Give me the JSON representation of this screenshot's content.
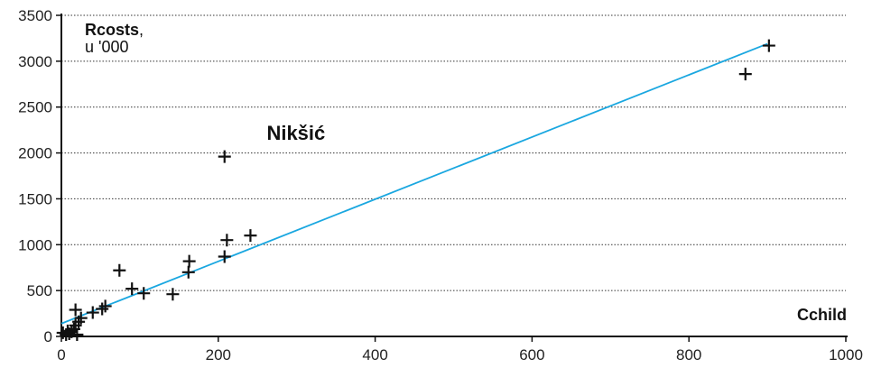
{
  "chart_data": {
    "type": "scatter",
    "title": "",
    "ylabel_bold": "Rcosts",
    "ylabel_comma": ",",
    "ylabel_unit": "u '000",
    "xlabel": "Cchild",
    "xlim": [
      0,
      1000
    ],
    "ylim": [
      0,
      3500
    ],
    "x_ticks": [
      0,
      200,
      400,
      600,
      800,
      1000
    ],
    "y_ticks": [
      0,
      500,
      1000,
      1500,
      2000,
      2500,
      3000,
      3500
    ],
    "grid": "horizontal dotted",
    "point_marker": "plus",
    "points": [
      {
        "x": 2,
        "y": 40
      },
      {
        "x": 6,
        "y": 20
      },
      {
        "x": 8,
        "y": 60
      },
      {
        "x": 10,
        "y": 30
      },
      {
        "x": 13,
        "y": 50
      },
      {
        "x": 16,
        "y": 80
      },
      {
        "x": 18,
        "y": 120
      },
      {
        "x": 18,
        "y": 290
      },
      {
        "x": 20,
        "y": 20
      },
      {
        "x": 22,
        "y": 160
      },
      {
        "x": 25,
        "y": 200
      },
      {
        "x": 40,
        "y": 260
      },
      {
        "x": 52,
        "y": 300
      },
      {
        "x": 56,
        "y": 330
      },
      {
        "x": 74,
        "y": 720
      },
      {
        "x": 90,
        "y": 520
      },
      {
        "x": 105,
        "y": 470
      },
      {
        "x": 142,
        "y": 460
      },
      {
        "x": 162,
        "y": 700
      },
      {
        "x": 163,
        "y": 820
      },
      {
        "x": 208,
        "y": 870
      },
      {
        "x": 208,
        "y": 1960
      },
      {
        "x": 211,
        "y": 1050
      },
      {
        "x": 241,
        "y": 1100
      },
      {
        "x": 872,
        "y": 2860
      },
      {
        "x": 902,
        "y": 3170
      }
    ],
    "trendline": {
      "x": [
        0,
        900
      ],
      "y": [
        140,
        3190
      ],
      "color": "#1aa7e0"
    },
    "annotation": {
      "text": "Nikšić",
      "x": 218,
      "y": 2200
    }
  }
}
